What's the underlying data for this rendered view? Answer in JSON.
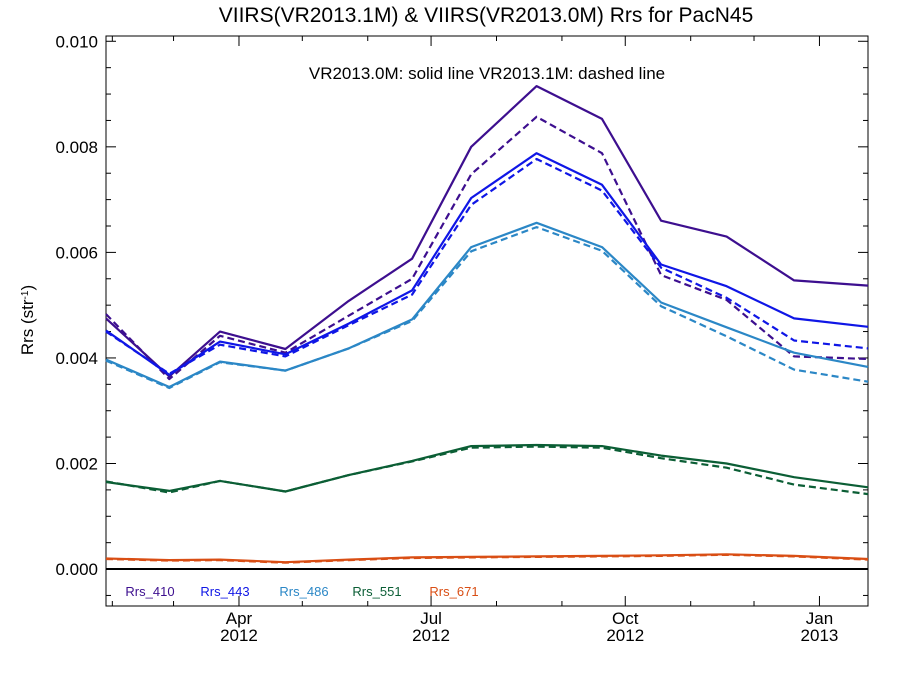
{
  "chart_data": {
    "type": "line",
    "title": "VIIRS(VR2013.1M) & VIIRS(VR2013.0M)  Rrs for PacN45",
    "annotation": "VR2013.0M: solid line   VR2013.1M: dashed line",
    "ylabel": {
      "main": "Rrs (str",
      "sup": "-1",
      "close": ")"
    },
    "xlabel": "",
    "ylim": [
      -0.0007,
      0.0101
    ],
    "xlim": [
      "2012-01-29",
      "2013-01-24"
    ],
    "yticks": [
      {
        "value": 0.0,
        "label": "0.000"
      },
      {
        "value": 0.002,
        "label": "0.002"
      },
      {
        "value": 0.004,
        "label": "0.004"
      },
      {
        "value": 0.006,
        "label": "0.006"
      },
      {
        "value": 0.008,
        "label": "0.008"
      },
      {
        "value": 0.01,
        "label": "0.010"
      }
    ],
    "xticks": [
      {
        "date": "2012-04-01",
        "month": "Apr",
        "year": "2012"
      },
      {
        "date": "2012-07-01",
        "month": "Jul",
        "year": "2012"
      },
      {
        "date": "2012-10-01",
        "month": "Oct",
        "year": "2012"
      },
      {
        "date": "2013-01-01",
        "month": "Jan",
        "year": "2013"
      }
    ],
    "zero_line": 0,
    "grid": false,
    "x": [
      "2012-01-29",
      "2012-02-28",
      "2012-03-23",
      "2012-04-23",
      "2012-05-23",
      "2012-06-22",
      "2012-07-20",
      "2012-08-20",
      "2012-09-20",
      "2012-10-18",
      "2012-11-18",
      "2012-12-20",
      "2013-01-24"
    ],
    "series": [
      {
        "name": "Rrs_410",
        "color": "#3d0f8f",
        "solid": [
          0.00475,
          0.00365,
          0.0045,
          0.00417,
          0.00508,
          0.00588,
          0.008,
          0.00915,
          0.00853,
          0.0066,
          0.0063,
          0.00547,
          0.00537
        ],
        "dashed": [
          0.00483,
          0.0036,
          0.00442,
          0.0041,
          0.0048,
          0.0055,
          0.00748,
          0.00857,
          0.00788,
          0.00557,
          0.0051,
          0.00403,
          0.00398
        ]
      },
      {
        "name": "Rrs_443",
        "color": "#0f16e6",
        "solid": [
          0.00452,
          0.00368,
          0.00431,
          0.00407,
          0.00465,
          0.00528,
          0.00703,
          0.00788,
          0.00728,
          0.00577,
          0.00536,
          0.00475,
          0.00459
        ],
        "dashed": [
          0.0045,
          0.0037,
          0.00425,
          0.00403,
          0.00462,
          0.0052,
          0.0069,
          0.00777,
          0.00717,
          0.00571,
          0.00514,
          0.00433,
          0.00418
        ]
      },
      {
        "name": "Rrs_486",
        "color": "#2b87c6",
        "solid": [
          0.00397,
          0.00345,
          0.00393,
          0.00376,
          0.00418,
          0.00473,
          0.0061,
          0.00656,
          0.0061,
          0.00505,
          0.00458,
          0.0041,
          0.00383
        ],
        "dashed": [
          0.00395,
          0.00343,
          0.00392,
          0.00376,
          0.00418,
          0.0047,
          0.00602,
          0.00648,
          0.00603,
          0.00498,
          0.00441,
          0.00378,
          0.00355
        ]
      },
      {
        "name": "Rrs_551",
        "color": "#0b5e35",
        "solid": [
          0.00165,
          0.00148,
          0.00167,
          0.00147,
          0.00178,
          0.00205,
          0.00233,
          0.00235,
          0.00233,
          0.00215,
          0.002,
          0.00174,
          0.00155
        ],
        "dashed": [
          0.00166,
          0.00145,
          0.00167,
          0.00147,
          0.00178,
          0.00204,
          0.0023,
          0.00232,
          0.0023,
          0.0021,
          0.00192,
          0.0016,
          0.00142
        ]
      },
      {
        "name": "Rrs_671",
        "color": "#d94e14",
        "solid": [
          0.0002,
          0.00017,
          0.00018,
          0.00013,
          0.00018,
          0.00022,
          0.00023,
          0.00024,
          0.00025,
          0.00026,
          0.00028,
          0.00025,
          0.00019
        ],
        "dashed": [
          0.00019,
          0.00016,
          0.00017,
          0.00012,
          0.00017,
          0.00021,
          0.00022,
          0.00023,
          0.00024,
          0.00025,
          0.00027,
          0.00024,
          0.00018
        ]
      }
    ]
  }
}
